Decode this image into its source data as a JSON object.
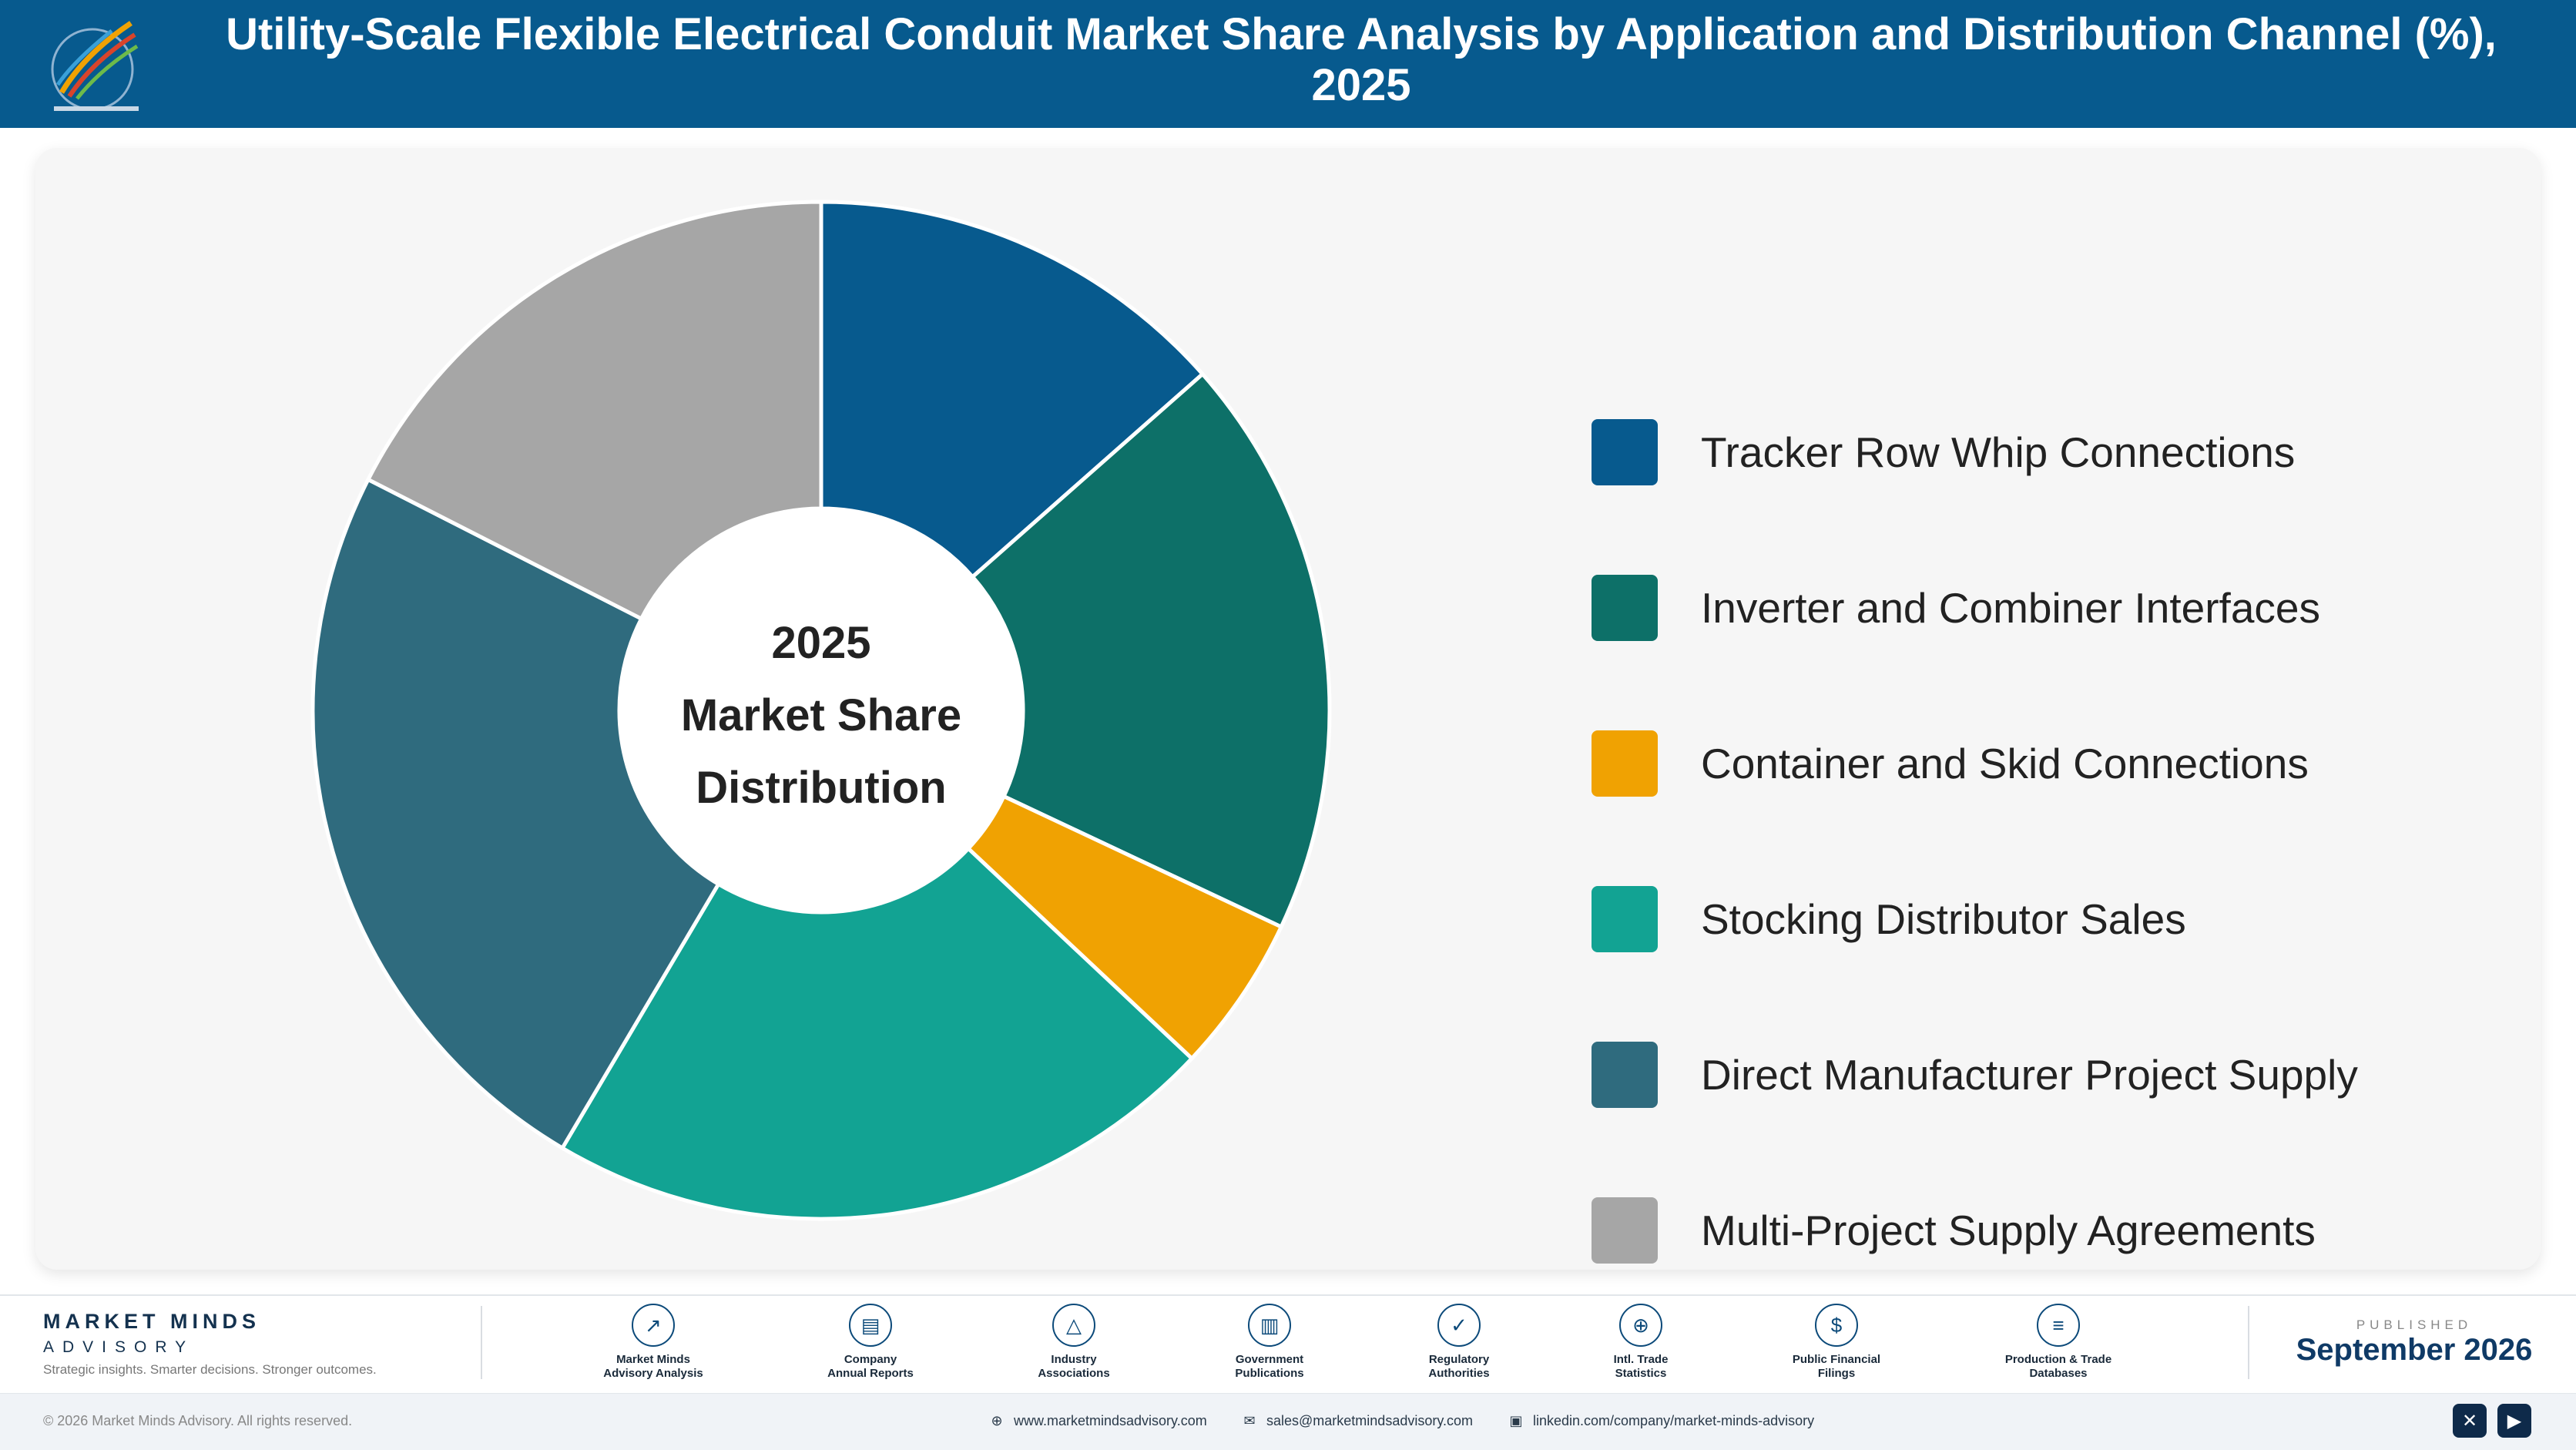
{
  "header": {
    "title": "Utility-Scale Flexible Electrical Conduit Market Share Analysis by Application and Distribution Channel (%), 2025",
    "logo_icon": "market-minds-logo-icon"
  },
  "chart_data": {
    "type": "pie",
    "variant": "donut",
    "title": "Utility-Scale Flexible Electrical Conduit Market Share Analysis by Application and Distribution Channel (%), 2025",
    "center_label": [
      "2025",
      "Market Share",
      "Distribution"
    ],
    "legend_position": "right",
    "categories": [
      "Tracker Row Whip Connections",
      "Inverter and Combiner Interfaces",
      "Container and Skid Connections",
      "Stocking Distributor Sales",
      "Direct Manufacturer Project Supply",
      "Multi-Project Supply Agreements"
    ],
    "values": [
      13.5,
      18.5,
      5.0,
      21.5,
      24.0,
      17.5
    ],
    "unit": "%",
    "colors": [
      "#075a8e",
      "#0d7068",
      "#f0a202",
      "#12a393",
      "#2f6b7e",
      "#a6a6a6"
    ]
  },
  "footer": {
    "brand_name": "MARKET MINDS",
    "brand_sub": "ADVISORY",
    "brand_tagline": "Strategic insights. Smarter decisions. Stronger outcomes.",
    "sources": [
      {
        "label_1": "Market Minds",
        "label_2": "Advisory Analysis",
        "icon": "chart-line-icon",
        "glyph": "↗"
      },
      {
        "label_1": "Company",
        "label_2": "Annual Reports",
        "icon": "document-icon",
        "glyph": "▤"
      },
      {
        "label_1": "Industry",
        "label_2": "Associations",
        "icon": "network-icon",
        "glyph": "△"
      },
      {
        "label_1": "Government",
        "label_2": "Publications",
        "icon": "building-icon",
        "glyph": "▥"
      },
      {
        "label_1": "Regulatory",
        "label_2": "Authorities",
        "icon": "shield-icon",
        "glyph": "✓"
      },
      {
        "label_1": "Intl. Trade",
        "label_2": "Statistics",
        "icon": "globe-icon",
        "glyph": "⊕"
      },
      {
        "label_1": "Public Financial",
        "label_2": "Filings",
        "icon": "dollar-icon",
        "glyph": "$"
      },
      {
        "label_1": "Production & Trade",
        "label_2": "Databases",
        "icon": "database-icon",
        "glyph": "≡"
      }
    ],
    "published_label": "PUBLISHED",
    "published_date": "September 2026",
    "copyright": "© 2026 Market Minds Advisory. All rights reserved.",
    "website": "www.marketmindsadvisory.com",
    "email": "sales@marketmindsadvisory.com",
    "linkedin": "linkedin.com/company/market-minds-advisory"
  }
}
